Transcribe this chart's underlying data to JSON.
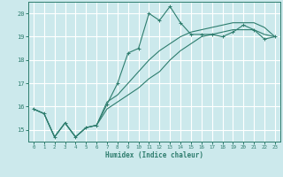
{
  "xlabel": "Humidex (Indice chaleur)",
  "bg_color": "#cce9ec",
  "grid_color": "#ffffff",
  "line_color": "#2e7d6e",
  "xlim": [
    -0.5,
    23.5
  ],
  "ylim": [
    14.5,
    20.5
  ],
  "xticks": [
    0,
    1,
    2,
    3,
    4,
    5,
    6,
    7,
    8,
    9,
    10,
    11,
    12,
    13,
    14,
    15,
    16,
    17,
    18,
    19,
    20,
    21,
    22,
    23
  ],
  "yticks": [
    15,
    16,
    17,
    18,
    19,
    20
  ],
  "line1_x": [
    0,
    1,
    2,
    3,
    4,
    5,
    6,
    7,
    8,
    9,
    10,
    11,
    12,
    13,
    14,
    15,
    16,
    17,
    18,
    19,
    20,
    21,
    22,
    23
  ],
  "line1_y": [
    15.9,
    15.7,
    14.7,
    15.3,
    14.7,
    15.1,
    15.2,
    16.1,
    17.0,
    18.3,
    18.5,
    20.0,
    19.7,
    20.3,
    19.6,
    19.1,
    19.1,
    19.1,
    19.0,
    19.2,
    19.5,
    19.3,
    18.9,
    19.0
  ],
  "line2_x": [
    0,
    1,
    2,
    3,
    4,
    5,
    6,
    7,
    8,
    9,
    10,
    11,
    12,
    13,
    14,
    15,
    16,
    17,
    18,
    19,
    20,
    21,
    22,
    23
  ],
  "line2_y": [
    15.9,
    15.7,
    14.7,
    15.3,
    14.7,
    15.1,
    15.2,
    16.2,
    16.5,
    17.0,
    17.5,
    18.0,
    18.4,
    18.7,
    19.0,
    19.2,
    19.3,
    19.4,
    19.5,
    19.6,
    19.6,
    19.6,
    19.4,
    19.0
  ],
  "line3_x": [
    0,
    1,
    2,
    3,
    4,
    5,
    6,
    7,
    8,
    9,
    10,
    11,
    12,
    13,
    14,
    15,
    16,
    17,
    18,
    19,
    20,
    21,
    22,
    23
  ],
  "line3_y": [
    15.9,
    15.7,
    14.7,
    15.3,
    14.7,
    15.1,
    15.2,
    15.9,
    16.2,
    16.5,
    16.8,
    17.2,
    17.5,
    18.0,
    18.4,
    18.7,
    19.0,
    19.1,
    19.2,
    19.3,
    19.3,
    19.3,
    19.1,
    19.0
  ]
}
